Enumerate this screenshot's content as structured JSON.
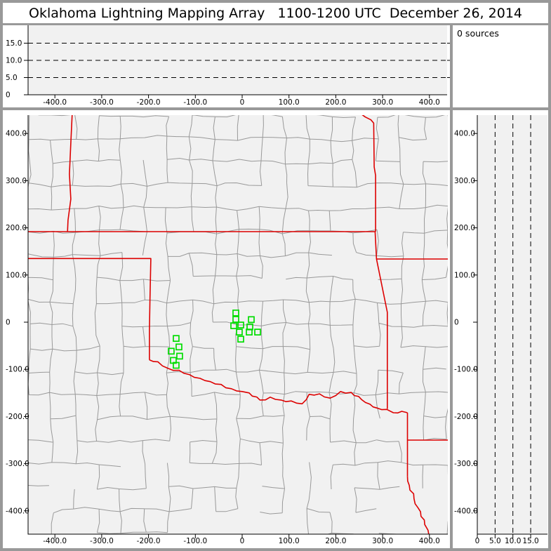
{
  "title": "Oklahoma Lightning Mapping Array   1100-1200 UTC  December 26, 2014",
  "sources_label": "0 sources",
  "colors": {
    "frame": "#999999",
    "panel_bg": "#ffffff",
    "plot_bg": "#f1f1f1",
    "county": "#999999",
    "state_border": "#dd0000",
    "station": "#00dd00",
    "grid": "#000000",
    "axis": "#000000",
    "text": "#000000"
  },
  "chart_data": [
    {
      "id": "top_altitude_panel",
      "type": "scatter",
      "description": "Altitude (km) vs east-west distance (km); dashed gridlines at 5, 10, 15 km; no source points plotted",
      "x_range_km": [
        -459,
        441
      ],
      "y_range_km": [
        0,
        20
      ],
      "x_ticks": {
        "values": [
          -400,
          -300,
          -200,
          -100,
          0,
          100,
          200,
          300,
          400
        ],
        "labels": [
          "-400.0",
          "-300.0",
          "-200.0",
          "-100.0",
          "0",
          "100.0",
          "200.0",
          "300.0",
          "400.0"
        ]
      },
      "y_ticks": {
        "values": [
          0,
          5,
          10,
          15
        ],
        "labels": [
          "0",
          "5.0",
          "10.0",
          "15.0"
        ]
      },
      "gridlines": {
        "orientation": "horizontal",
        "dashed_at": [
          5,
          10,
          15
        ]
      },
      "points": []
    },
    {
      "id": "plan_view_map",
      "type": "scatter",
      "description": "Plan-view map centered on the Oklahoma LMA network; gray county boundaries, red state boundaries, green LMA station squares; no lightning sources plotted",
      "x_range_km": [
        -459,
        441
      ],
      "y_range_km": [
        -449,
        442
      ],
      "x_ticks": {
        "values": [
          -400,
          -300,
          -200,
          -100,
          0,
          100,
          200,
          300,
          400
        ],
        "labels": [
          "-400.0",
          "-300.0",
          "-200.0",
          "-100.0",
          "0",
          "100.0",
          "200.0",
          "300.0",
          "400.0"
        ]
      },
      "y_ticks": {
        "values": [
          400,
          300,
          200,
          100,
          0,
          -100,
          -200,
          -300,
          -400
        ],
        "labels": [
          "400.0",
          "300.0",
          "200.0",
          "100.0",
          "0",
          "-100.0",
          "-200.0",
          "-300.0",
          "-400.0"
        ]
      },
      "stations_km": [
        [
          -13.5,
          19.5
        ],
        [
          -13.5,
          6
        ],
        [
          -18,
          -7.5
        ],
        [
          -3,
          -6
        ],
        [
          19.5,
          5.5
        ],
        [
          16.5,
          -10
        ],
        [
          -6,
          -21
        ],
        [
          15,
          -21
        ],
        [
          33,
          -21
        ],
        [
          -3,
          -36
        ],
        [
          -141,
          -34.5
        ],
        [
          -135,
          -52.5
        ],
        [
          -151.5,
          -61.5
        ],
        [
          -133.5,
          -72
        ],
        [
          -147,
          -81
        ],
        [
          -141,
          -91.5
        ]
      ],
      "state_borders": [
        {
          "name": "kansas-colorado-102w",
          "wiggle": false,
          "points_km": [
            [
              -363,
              443
            ],
            [
              -366,
              380
            ],
            [
              -369,
              314
            ],
            [
              -366,
              261
            ],
            [
              -372,
              216
            ],
            [
              -373,
              192
            ]
          ]
        },
        {
          "name": "kansas-oklahoma-37n",
          "wiggle": false,
          "points_km": [
            [
              -459,
              192
            ],
            [
              284,
              192
            ]
          ]
        },
        {
          "name": "texas-oklahoma-36p5n-100w",
          "wiggle": false,
          "points_km": [
            [
              -459,
              135
            ],
            [
              -195,
              135
            ],
            [
              -197,
              44
            ],
            [
              -198,
              -16
            ],
            [
              -198,
              -80
            ]
          ]
        },
        {
          "name": "red-river-ok-tx",
          "wiggle": true,
          "points_km": [
            [
              -198,
              -80
            ],
            [
              -180,
              -84
            ],
            [
              -158,
              -98
            ],
            [
              -135,
              -102
            ],
            [
              -113,
              -111
            ],
            [
              -90,
              -119
            ],
            [
              -68,
              -126
            ],
            [
              -45,
              -132
            ],
            [
              -23,
              -141
            ],
            [
              0,
              -147
            ],
            [
              15,
              -150
            ],
            [
              38,
              -165
            ],
            [
              60,
              -159
            ],
            [
              83,
              -165
            ],
            [
              105,
              -167
            ],
            [
              128,
              -173
            ],
            [
              143,
              -153
            ],
            [
              165,
              -152
            ],
            [
              188,
              -161
            ],
            [
              210,
              -147
            ],
            [
              233,
              -149
            ],
            [
              255,
              -164
            ],
            [
              273,
              -174
            ],
            [
              288,
              -182
            ],
            [
              309,
              -185
            ],
            [
              323,
              -192
            ],
            [
              341,
              -189
            ],
            [
              353,
              -192
            ]
          ]
        },
        {
          "name": "kansas-missouri",
          "wiggle": false,
          "points_km": [
            [
              252,
              443
            ],
            [
              263,
              435
            ],
            [
              275,
              429
            ],
            [
              281,
              422
            ],
            [
              282,
              329
            ],
            [
              285,
              311
            ],
            [
              285,
              192
            ]
          ]
        },
        {
          "name": "oklahoma-missouri-arkansas",
          "wiggle": false,
          "points_km": [
            [
              284,
              192
            ],
            [
              287,
              134
            ],
            [
              310,
              21
            ],
            [
              310,
              -184
            ]
          ]
        },
        {
          "name": "missouri-arkansas-36p5n",
          "wiggle": false,
          "points_km": [
            [
              287,
              134
            ],
            [
              460,
              134
            ]
          ]
        },
        {
          "name": "texas-arkansas-louisiana-94w",
          "wiggle": false,
          "points_km": [
            [
              353,
              -192
            ],
            [
              353,
              -327
            ]
          ]
        },
        {
          "name": "arkansas-louisiana-33n",
          "wiggle": false,
          "points_km": [
            [
              353,
              -250
            ],
            [
              460,
              -250
            ]
          ]
        },
        {
          "name": "sabine-river-tx-la",
          "wiggle": true,
          "points_km": [
            [
              353,
              -327
            ],
            [
              357,
              -346
            ],
            [
              367,
              -374
            ],
            [
              376,
              -394
            ],
            [
              381,
              -402
            ],
            [
              390,
              -429
            ],
            [
              397,
              -441
            ],
            [
              404,
              -456
            ]
          ]
        }
      ],
      "county_lines": "procedural gray mesh approximating county boundaries"
    },
    {
      "id": "right_altitude_panel",
      "type": "scatter",
      "description": "North-south distance (km) vs altitude (km); dashed gridlines at 5, 10, 15 km; no source points plotted",
      "x_range_km": [
        0,
        20
      ],
      "y_range_km": [
        -449,
        442
      ],
      "x_ticks": {
        "values": [
          0,
          5,
          10,
          15
        ],
        "labels": [
          "0",
          "5.0",
          "10.0",
          "15.0"
        ]
      },
      "y_ticks": {
        "values": [
          400,
          300,
          200,
          100,
          0,
          -100,
          -200,
          -300,
          -400
        ],
        "labels": [
          "400.0",
          "300.0",
          "200.0",
          "100.0",
          "0",
          "-100.0",
          "-200.0",
          "-300.0",
          "-400.0"
        ]
      },
      "gridlines": {
        "orientation": "vertical",
        "dashed_at": [
          5,
          10,
          15
        ]
      },
      "points": []
    }
  ]
}
